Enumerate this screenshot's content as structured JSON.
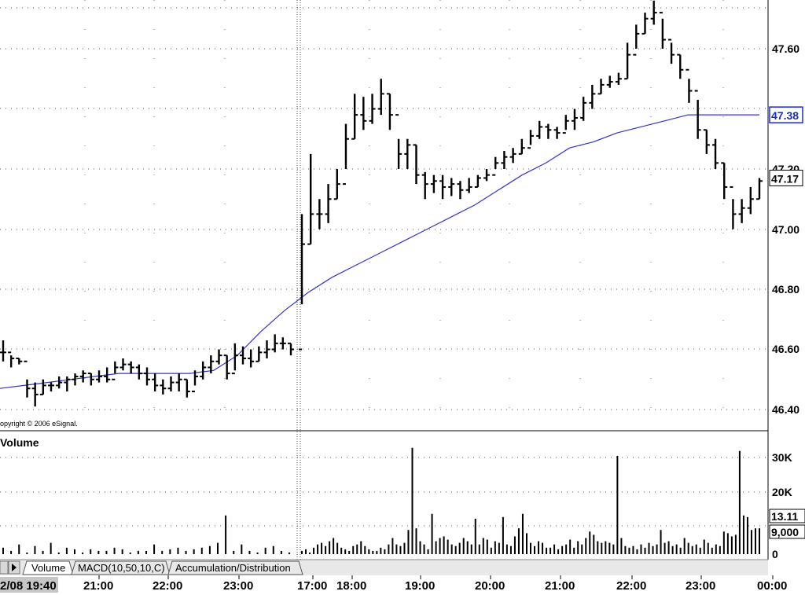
{
  "chart_data": [
    {
      "type": "ohlc",
      "copyright": "opyright © 2006 eSignal.",
      "y_ticks": [
        "47.60",
        "47.20",
        "47.00",
        "46.80",
        "46.60",
        "46.40"
      ],
      "ylim": [
        46.35,
        47.82
      ],
      "grid": true,
      "price_badge": {
        "value": "47.17",
        "color": "#000000"
      },
      "ma_badge": {
        "value": "47.38",
        "color": "#1a2ccc"
      },
      "ma_color": "#3333cc",
      "ma_values": [
        46.47,
        46.48,
        46.49,
        46.5,
        46.51,
        46.52,
        46.52,
        46.52,
        46.52,
        46.53,
        46.58,
        46.66,
        46.73,
        46.79,
        46.84,
        46.88,
        46.92,
        46.96,
        47.0,
        47.04,
        47.08,
        47.13,
        47.18,
        47.22,
        47.27,
        47.29,
        47.32,
        47.34,
        47.36,
        47.38,
        47.38,
        47.38,
        47.38
      ],
      "bars": [
        [
          46.63,
          46.56,
          46.59
        ],
        [
          46.58,
          46.54,
          46.57
        ],
        [
          46.57,
          46.55,
          46.56
        ],
        [
          46.5,
          46.44,
          46.47
        ],
        [
          46.49,
          46.41,
          46.45
        ],
        [
          46.5,
          46.45,
          46.48
        ],
        [
          46.49,
          46.46,
          46.48
        ],
        [
          46.51,
          46.47,
          46.49
        ],
        [
          46.51,
          46.46,
          46.5
        ],
        [
          46.52,
          46.48,
          46.51
        ],
        [
          46.53,
          46.49,
          46.52
        ],
        [
          46.52,
          46.48,
          46.5
        ],
        [
          46.53,
          46.49,
          46.51
        ],
        [
          46.54,
          46.49,
          46.5
        ],
        [
          46.56,
          46.52,
          46.54
        ],
        [
          46.57,
          46.53,
          46.55
        ],
        [
          46.56,
          46.52,
          46.54
        ],
        [
          46.55,
          46.5,
          46.52
        ],
        [
          46.54,
          46.48,
          46.5
        ],
        [
          46.52,
          46.46,
          46.48
        ],
        [
          46.5,
          46.45,
          46.47
        ],
        [
          46.51,
          46.46,
          46.49
        ],
        [
          46.52,
          46.46,
          46.5
        ],
        [
          46.5,
          46.44,
          46.46
        ],
        [
          46.53,
          46.48,
          46.51
        ],
        [
          46.56,
          46.5,
          46.54
        ],
        [
          46.58,
          46.52,
          46.56
        ],
        [
          46.6,
          46.55,
          46.58
        ],
        [
          46.58,
          46.5,
          46.52
        ],
        [
          46.62,
          46.53,
          46.58
        ],
        [
          46.61,
          46.55,
          46.57
        ],
        [
          46.6,
          46.54,
          46.56
        ],
        [
          46.61,
          46.56,
          46.59
        ],
        [
          46.63,
          46.57,
          46.6
        ],
        [
          46.65,
          46.59,
          46.62
        ],
        [
          46.64,
          46.6,
          46.62
        ],
        [
          46.62,
          46.58,
          46.6
        ],
        [
          47.05,
          46.75,
          46.95
        ],
        [
          47.25,
          46.95,
          47.05
        ],
        [
          47.1,
          47.0,
          47.05
        ],
        [
          47.15,
          47.02,
          47.1
        ],
        [
          47.2,
          47.1,
          47.15
        ],
        [
          47.35,
          47.2,
          47.3
        ],
        [
          47.45,
          47.3,
          47.38
        ],
        [
          47.44,
          47.33,
          47.36
        ],
        [
          47.45,
          47.35,
          47.4
        ],
        [
          47.5,
          47.38,
          47.45
        ],
        [
          47.45,
          47.33,
          47.38
        ],
        [
          47.3,
          47.2,
          47.25
        ],
        [
          47.3,
          47.2,
          47.28
        ],
        [
          47.28,
          47.15,
          47.18
        ],
        [
          47.19,
          47.1,
          47.15
        ],
        [
          47.18,
          47.12,
          47.16
        ],
        [
          47.18,
          47.1,
          47.14
        ],
        [
          47.17,
          47.11,
          47.15
        ],
        [
          47.16,
          47.1,
          47.13
        ],
        [
          47.17,
          47.12,
          47.14
        ],
        [
          47.18,
          47.14,
          47.17
        ],
        [
          47.2,
          47.16,
          47.18
        ],
        [
          47.24,
          47.2,
          47.22
        ],
        [
          47.26,
          47.2,
          47.24
        ],
        [
          47.27,
          47.22,
          47.25
        ],
        [
          47.3,
          47.25,
          47.27
        ],
        [
          47.33,
          47.28,
          47.31
        ],
        [
          47.36,
          47.3,
          47.34
        ],
        [
          47.35,
          47.3,
          47.33
        ],
        [
          47.34,
          47.3,
          47.32
        ],
        [
          47.38,
          47.33,
          47.36
        ],
        [
          47.4,
          47.33,
          47.37
        ],
        [
          47.44,
          47.36,
          47.42
        ],
        [
          47.48,
          47.4,
          47.45
        ],
        [
          47.5,
          47.45,
          47.48
        ],
        [
          47.51,
          47.47,
          47.49
        ],
        [
          47.52,
          47.48,
          47.5
        ],
        [
          47.62,
          47.5,
          47.58
        ],
        [
          47.68,
          47.6,
          47.65
        ],
        [
          47.72,
          47.65,
          47.7
        ],
        [
          47.76,
          47.68,
          47.72
        ],
        [
          47.7,
          47.6,
          47.63
        ],
        [
          47.62,
          47.55,
          47.58
        ],
        [
          47.58,
          47.5,
          47.53
        ],
        [
          47.5,
          47.42,
          47.46
        ],
        [
          47.43,
          47.3,
          47.33
        ],
        [
          47.33,
          47.25,
          47.28
        ],
        [
          47.3,
          47.2,
          47.22
        ],
        [
          47.22,
          47.1,
          47.14
        ],
        [
          47.1,
          47.0,
          47.05
        ],
        [
          47.1,
          47.02,
          47.07
        ],
        [
          47.14,
          47.05,
          47.1
        ],
        [
          47.17,
          47.1,
          47.16
        ]
      ]
    },
    {
      "type": "bar",
      "title": "Volume",
      "y_ticks": [
        "30K",
        "20K",
        "0"
      ],
      "ylim": [
        0,
        35000
      ],
      "grid": true,
      "badges": [
        {
          "value": "13.11",
          "color": "#000000"
        },
        {
          "value": "9,000",
          "color": "#000000"
        }
      ],
      "values": [
        2000,
        1000,
        3000,
        500,
        2500,
        1000,
        3500,
        500,
        2000,
        1500,
        500,
        1500,
        1000,
        1000,
        2000,
        1500,
        500,
        1000,
        1000,
        3000,
        1000,
        1500,
        2000,
        1000,
        1500,
        2000,
        2500,
        3500,
        12000,
        1000,
        3000,
        1000,
        500,
        2000,
        2500,
        1000,
        500,
        1000,
        1500,
        500,
        2000,
        3000,
        3500,
        2500,
        4000,
        5000,
        3500,
        2000,
        1500,
        1000,
        2500,
        3000,
        4000,
        2500,
        1500,
        1000,
        1000,
        2000,
        1500,
        3000,
        5000,
        3000,
        2500,
        3500,
        7500,
        33000,
        8000,
        4000,
        3000,
        1500,
        12500,
        4000,
        5000,
        5500,
        4500,
        3000,
        2500,
        3500,
        5000,
        4000,
        3000,
        11000,
        3000,
        5000,
        4500,
        2000,
        4000,
        3500,
        11500,
        3000,
        2500,
        5500,
        8000,
        12500,
        6500,
        3500,
        2500,
        4000,
        3500,
        2000,
        2000,
        3000,
        1500,
        2500,
        3000,
        4500,
        2000,
        4000,
        3000,
        5000,
        7000,
        6000,
        4000,
        3500,
        4000,
        3500,
        3000,
        30500,
        5000,
        2500,
        2000,
        2500,
        1500,
        3000,
        2000,
        3500,
        2500,
        3000,
        7500,
        3500,
        4000,
        2500,
        3000,
        2000,
        5000,
        3500,
        2500,
        3000,
        2000,
        4500,
        3500,
        2000,
        3000,
        2500,
        7000,
        6500,
        5500,
        6000,
        32000,
        12000,
        11500,
        7500,
        8000,
        8000
      ]
    }
  ],
  "tabs": {
    "items": [
      {
        "label": "Volume",
        "active": true
      },
      {
        "label": "MACD(10,50,10,C)",
        "active": false
      },
      {
        "label": "Accumulation/Distribution",
        "active": false
      }
    ]
  },
  "time_axis": {
    "start_label": "2/08 19:40",
    "labels": [
      "21:00",
      "22:00",
      "23:00",
      "17:00",
      "18:00",
      "19:00",
      "20:00",
      "21:00",
      "22:00",
      "23:00",
      "00:00"
    ]
  }
}
